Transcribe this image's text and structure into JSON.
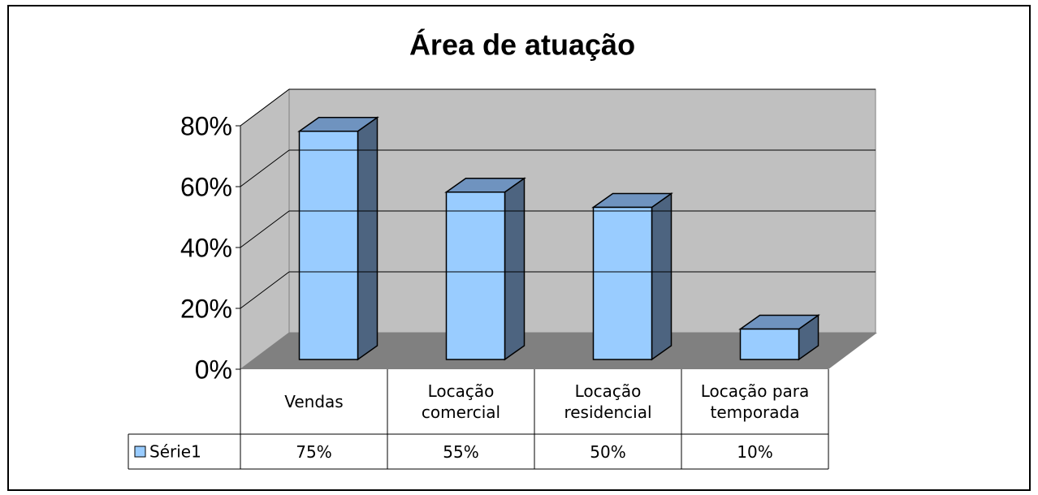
{
  "chart_data": {
    "type": "bar3d",
    "title": "Área de atuação",
    "categories": [
      "Vendas",
      "Locação comercial",
      "Locação residencial",
      "Locação para temporada"
    ],
    "series": [
      {
        "name": "Série1",
        "color": "#99ccff",
        "values": [
          75,
          55,
          50,
          10
        ],
        "value_labels": [
          "75%",
          "55%",
          "50%",
          "10%"
        ]
      }
    ],
    "ylim": [
      0,
      80
    ],
    "yticks": [
      {
        "value": 0,
        "label": "0%"
      },
      {
        "value": 20,
        "label": "20%"
      },
      {
        "value": 40,
        "label": "40%"
      },
      {
        "value": 60,
        "label": "60%"
      },
      {
        "value": 80,
        "label": "80%"
      }
    ],
    "grid": true
  }
}
